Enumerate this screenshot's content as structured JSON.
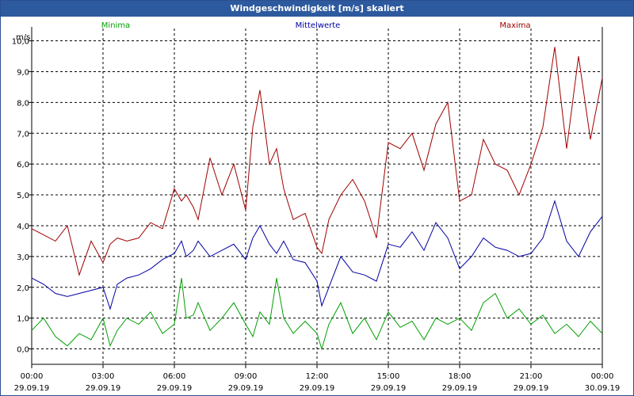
{
  "window": {
    "title": "Windgeschwindigkeit [m/s] skaliert"
  },
  "chart_data": {
    "type": "line",
    "title": "Windgeschwindigkeit [m/s] skaliert",
    "ylabel": "m/s",
    "xlabel": "",
    "ylim": [
      -0.5,
      10.4
    ],
    "xlim": [
      0,
      24
    ],
    "grid": true,
    "legend": "top",
    "y_ticks": [
      "0,0",
      "1,0",
      "2,0",
      "3,0",
      "4,0",
      "5,0",
      "6,0",
      "7,0",
      "8,0",
      "9,0",
      "10,0"
    ],
    "y_tick_values": [
      0,
      1,
      2,
      3,
      4,
      5,
      6,
      7,
      8,
      9,
      10
    ],
    "x_ticks": [
      {
        "time": "00:00",
        "date": "29.09.19",
        "hour": 0
      },
      {
        "time": "03:00",
        "date": "29.09.19",
        "hour": 3
      },
      {
        "time": "06:00",
        "date": "29.09.19",
        "hour": 6
      },
      {
        "time": "09:00",
        "date": "29.09.19",
        "hour": 9
      },
      {
        "time": "12:00",
        "date": "29.09.19",
        "hour": 12
      },
      {
        "time": "15:00",
        "date": "29.09.19",
        "hour": 15
      },
      {
        "time": "18:00",
        "date": "29.09.19",
        "hour": 18
      },
      {
        "time": "21:00",
        "date": "29.09.19",
        "hour": 21
      },
      {
        "time": "00:00",
        "date": "30.09.19",
        "hour": 24
      }
    ],
    "series": [
      {
        "name": "Minima",
        "color": "#00a000",
        "hours": [
          0,
          0.5,
          1,
          1.5,
          2,
          2.5,
          3,
          3.3,
          3.6,
          4,
          4.5,
          5,
          5.5,
          6,
          6.3,
          6.5,
          6.8,
          7,
          7.5,
          8,
          8.5,
          9,
          9.3,
          9.6,
          10,
          10.3,
          10.6,
          11,
          11.5,
          12,
          12.2,
          12.5,
          13,
          13.5,
          14,
          14.5,
          15,
          15.5,
          16,
          16.5,
          17,
          17.5,
          18,
          18.5,
          19,
          19.5,
          20,
          20.5,
          21,
          21.5,
          22,
          22.5,
          23,
          23.5,
          24
        ],
        "values": [
          0.6,
          1.0,
          0.4,
          0.1,
          0.5,
          0.3,
          1.0,
          0.1,
          0.6,
          1.0,
          0.8,
          1.2,
          0.5,
          0.8,
          2.3,
          1.0,
          1.1,
          1.5,
          0.6,
          1.0,
          1.5,
          0.8,
          0.4,
          1.2,
          0.8,
          2.3,
          1.0,
          0.5,
          0.9,
          0.5,
          0.0,
          0.8,
          1.5,
          0.5,
          1.0,
          0.3,
          1.2,
          0.7,
          0.9,
          0.3,
          1.0,
          0.8,
          1.0,
          0.6,
          1.5,
          1.8,
          1.0,
          1.3,
          0.8,
          1.1,
          0.5,
          0.8,
          0.4,
          0.9,
          0.5
        ]
      },
      {
        "name": "Mittelwerte",
        "color": "#0000a0",
        "hours": [
          0,
          0.5,
          1,
          1.5,
          2,
          2.5,
          3,
          3.3,
          3.6,
          4,
          4.5,
          5,
          5.5,
          6,
          6.3,
          6.5,
          6.8,
          7,
          7.5,
          8,
          8.5,
          9,
          9.3,
          9.6,
          10,
          10.3,
          10.6,
          11,
          11.5,
          12,
          12.2,
          12.5,
          13,
          13.5,
          14,
          14.5,
          15,
          15.5,
          16,
          16.5,
          17,
          17.5,
          18,
          18.5,
          19,
          19.5,
          20,
          20.5,
          21,
          21.5,
          22,
          22.5,
          23,
          23.5,
          24
        ],
        "values": [
          2.3,
          2.1,
          1.8,
          1.7,
          1.8,
          1.9,
          2.0,
          1.3,
          2.1,
          2.3,
          2.4,
          2.6,
          2.9,
          3.1,
          3.5,
          3.0,
          3.2,
          3.5,
          3.0,
          3.2,
          3.4,
          2.9,
          3.6,
          4.0,
          3.4,
          3.1,
          3.5,
          2.9,
          2.8,
          2.2,
          1.4,
          2.0,
          3.0,
          2.5,
          2.4,
          2.2,
          3.4,
          3.3,
          3.8,
          3.2,
          4.1,
          3.6,
          2.6,
          3.0,
          3.6,
          3.3,
          3.2,
          3.0,
          3.1,
          3.6,
          4.8,
          3.5,
          3.0,
          3.8,
          4.3
        ]
      },
      {
        "name": "Maxima",
        "color": "#a00000",
        "hours": [
          0,
          0.5,
          1,
          1.5,
          2,
          2.5,
          3,
          3.3,
          3.6,
          4,
          4.5,
          5,
          5.5,
          6,
          6.3,
          6.5,
          6.8,
          7,
          7.5,
          8,
          8.5,
          9,
          9.3,
          9.6,
          10,
          10.3,
          10.6,
          11,
          11.5,
          12,
          12.2,
          12.5,
          13,
          13.5,
          14,
          14.5,
          15,
          15.5,
          16,
          16.5,
          17,
          17.5,
          18,
          18.5,
          19,
          19.5,
          20,
          20.5,
          21,
          21.5,
          22,
          22.5,
          23,
          23.5,
          24
        ],
        "values": [
          3.9,
          3.7,
          3.5,
          4.0,
          2.4,
          3.5,
          2.8,
          3.4,
          3.6,
          3.5,
          3.6,
          4.1,
          3.9,
          5.2,
          4.8,
          5.0,
          4.6,
          4.2,
          6.2,
          5.0,
          6.0,
          4.5,
          7.2,
          8.4,
          6.0,
          6.5,
          5.2,
          4.2,
          4.4,
          3.3,
          3.1,
          4.2,
          5.0,
          5.5,
          4.8,
          3.6,
          6.7,
          6.5,
          7.0,
          5.8,
          7.3,
          8.0,
          4.8,
          5.0,
          6.8,
          6.0,
          5.8,
          5.0,
          6.0,
          7.2,
          9.8,
          6.5,
          9.5,
          6.8,
          8.8
        ]
      }
    ]
  }
}
